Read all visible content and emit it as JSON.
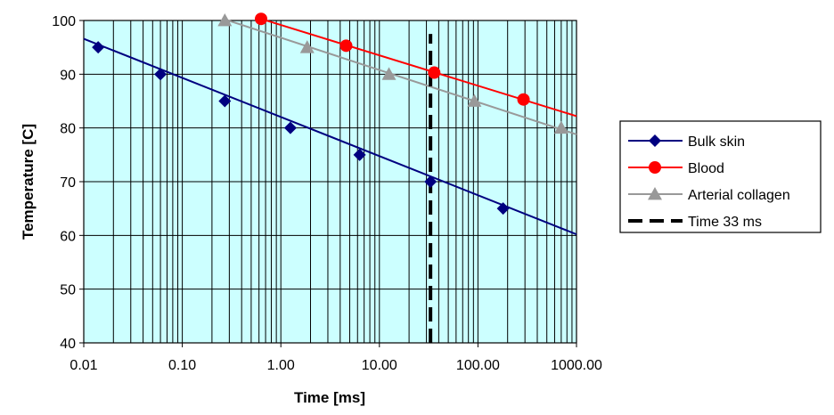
{
  "chart_data": {
    "type": "line",
    "title": "",
    "xlabel": "Time [ms]",
    "ylabel": "Temperature [C]",
    "x_scale": "log",
    "xlim": [
      0.01,
      1000
    ],
    "ylim": [
      40,
      100
    ],
    "x_tick_values": [
      0.01,
      0.1,
      1,
      10,
      100,
      1000
    ],
    "x_tick_labels": [
      "0.01",
      "0.10",
      "1.00",
      "10.00",
      "100.00",
      "1000.00"
    ],
    "y_tick_values": [
      40,
      50,
      60,
      70,
      80,
      90,
      100
    ],
    "y_tick_labels": [
      "40",
      "50",
      "60",
      "70",
      "80",
      "90",
      "100"
    ],
    "grid": true,
    "plot_background": "#ccffff",
    "legend_position": "right",
    "series": [
      {
        "name": "Bulk skin",
        "color": "#000080",
        "marker": "diamond",
        "points": [
          [
            0.014,
            95
          ],
          [
            0.06,
            90
          ],
          [
            0.27,
            85
          ],
          [
            1.25,
            80
          ],
          [
            6.3,
            75
          ],
          [
            33,
            70
          ],
          [
            180,
            65
          ]
        ],
        "line": [
          [
            0.01,
            96.6
          ],
          [
            1000,
            60.2
          ]
        ]
      },
      {
        "name": "Blood",
        "color": "#ff0000",
        "marker": "circle",
        "points": [
          [
            0.63,
            100.3
          ],
          [
            4.6,
            95.3
          ],
          [
            36,
            90.3
          ],
          [
            290,
            85.3
          ]
        ],
        "line": [
          [
            0.63,
            100.3
          ],
          [
            1000,
            82.2
          ]
        ]
      },
      {
        "name": "Arterial collagen",
        "color": "#999999",
        "marker": "triangle",
        "points": [
          [
            0.27,
            100
          ],
          [
            1.85,
            95
          ],
          [
            12.5,
            90
          ],
          [
            92,
            85
          ],
          [
            700,
            80
          ]
        ],
        "line": [
          [
            0.27,
            100.2
          ],
          [
            1000,
            78.8
          ]
        ]
      },
      {
        "name": "Time 33 ms",
        "color": "#000000",
        "marker": "none",
        "dashed": true,
        "points": [],
        "line": [
          [
            33,
            40
          ],
          [
            33,
            97.5
          ]
        ]
      }
    ]
  }
}
